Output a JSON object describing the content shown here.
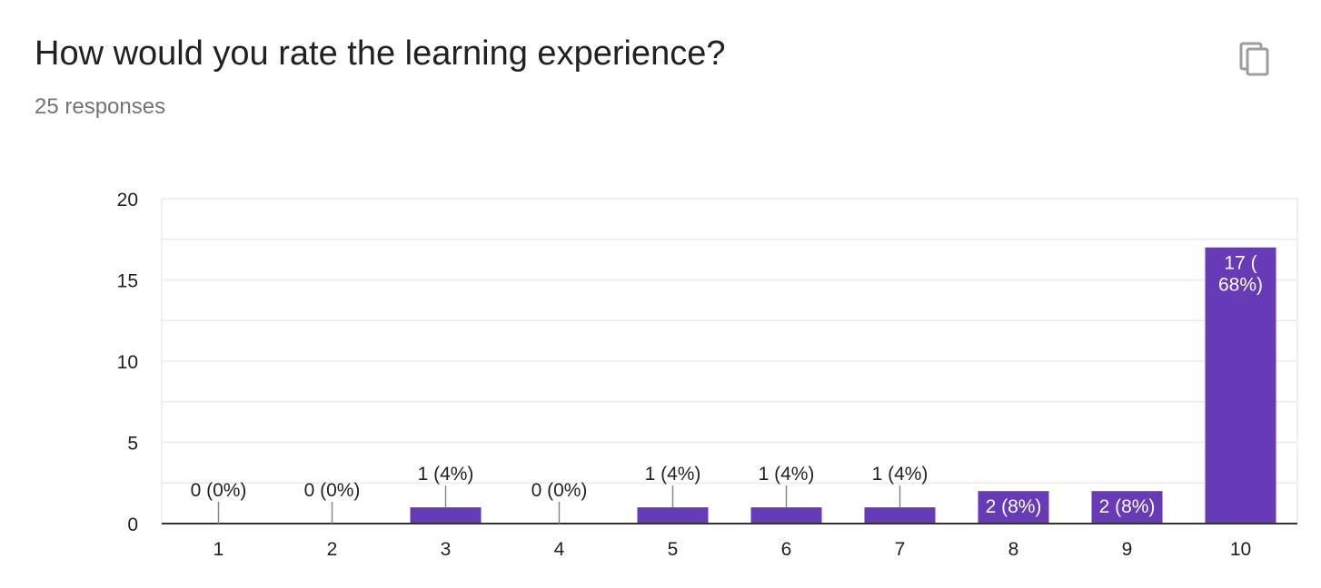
{
  "header": {
    "title": "How would you rate the learning experience?",
    "response_count": "25 responses",
    "copy_icon": "copy-icon"
  },
  "colors": {
    "bar": "#673ab7",
    "grid": "#ebebeb",
    "axis": "#333333",
    "label_dark": "#222222",
    "label_light": "#ffffff"
  },
  "chart_data": {
    "type": "bar",
    "categories": [
      "1",
      "2",
      "3",
      "4",
      "5",
      "6",
      "7",
      "8",
      "9",
      "10"
    ],
    "values": [
      0,
      0,
      1,
      0,
      1,
      1,
      1,
      2,
      2,
      17
    ],
    "data_labels": [
      "0 (0%)",
      "0 (0%)",
      "1 (4%)",
      "0 (0%)",
      "1 (4%)",
      "1 (4%)",
      "1 (4%)",
      "2 (8%)",
      "2 (8%)",
      "17 (\n68%)"
    ],
    "ylim": [
      0,
      20
    ],
    "yticks": [
      0,
      5,
      10,
      15,
      20
    ],
    "minor_grid_step": 2.5,
    "xlabel": "",
    "ylabel": "",
    "grid": true,
    "legend": "none"
  }
}
